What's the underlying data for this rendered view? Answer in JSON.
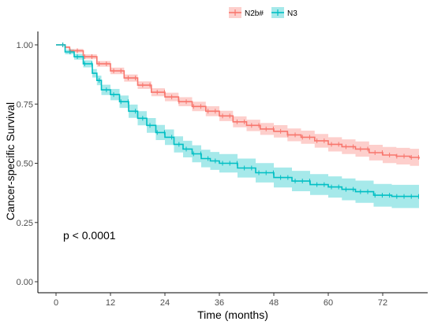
{
  "chart_data": {
    "type": "line",
    "xlabel": "Time (months)",
    "ylabel": "Cancer-specific Survival",
    "xlim": [
      0,
      80
    ],
    "ylim": [
      0,
      1
    ],
    "x_ticks": [
      0,
      12,
      24,
      36,
      48,
      60,
      72
    ],
    "y_ticks": [
      0.0,
      0.25,
      0.5,
      0.75,
      1.0
    ],
    "y_tick_labels": [
      "0.00",
      "0.25",
      "0.50",
      "0.75",
      "1.00"
    ],
    "grid": false,
    "legend_position": "top",
    "annotation": "p < 0.0001",
    "series": [
      {
        "name": "N2b#",
        "color": "#F8766D",
        "band_color": "#F8766D",
        "points": [
          [
            0,
            1.0
          ],
          [
            2,
            0.99
          ],
          [
            3,
            0.975
          ],
          [
            6,
            0.95
          ],
          [
            9,
            0.92
          ],
          [
            12,
            0.89
          ],
          [
            15,
            0.86
          ],
          [
            18,
            0.83
          ],
          [
            21,
            0.8
          ],
          [
            24,
            0.78
          ],
          [
            27,
            0.76
          ],
          [
            30,
            0.74
          ],
          [
            33,
            0.72
          ],
          [
            36,
            0.7
          ],
          [
            39,
            0.675
          ],
          [
            42,
            0.66
          ],
          [
            45,
            0.645
          ],
          [
            48,
            0.635
          ],
          [
            51,
            0.62
          ],
          [
            54,
            0.61
          ],
          [
            57,
            0.595
          ],
          [
            60,
            0.58
          ],
          [
            63,
            0.57
          ],
          [
            66,
            0.56
          ],
          [
            69,
            0.545
          ],
          [
            72,
            0.535
          ],
          [
            75,
            0.53
          ],
          [
            78,
            0.525
          ],
          [
            80,
            0.52
          ]
        ],
        "band_halfwidth": [
          0.0,
          0.005,
          0.008,
          0.01,
          0.012,
          0.014,
          0.015,
          0.016,
          0.017,
          0.018,
          0.019,
          0.02,
          0.021,
          0.022,
          0.023,
          0.024,
          0.025,
          0.026,
          0.027,
          0.028,
          0.029,
          0.03,
          0.031,
          0.032,
          0.033,
          0.034,
          0.035,
          0.036,
          0.037
        ]
      },
      {
        "name": "N3",
        "color": "#00BFC4",
        "band_color": "#00BFC4",
        "points": [
          [
            0,
            1.0
          ],
          [
            2,
            0.97
          ],
          [
            4,
            0.95
          ],
          [
            6,
            0.92
          ],
          [
            8,
            0.88
          ],
          [
            9,
            0.85
          ],
          [
            10,
            0.81
          ],
          [
            12,
            0.79
          ],
          [
            14,
            0.76
          ],
          [
            16,
            0.72
          ],
          [
            18,
            0.69
          ],
          [
            20,
            0.66
          ],
          [
            22,
            0.63
          ],
          [
            24,
            0.61
          ],
          [
            26,
            0.58
          ],
          [
            28,
            0.56
          ],
          [
            30,
            0.54
          ],
          [
            32,
            0.52
          ],
          [
            34,
            0.51
          ],
          [
            36,
            0.5
          ],
          [
            40,
            0.48
          ],
          [
            44,
            0.46
          ],
          [
            48,
            0.44
          ],
          [
            52,
            0.425
          ],
          [
            56,
            0.41
          ],
          [
            60,
            0.4
          ],
          [
            63,
            0.39
          ],
          [
            66,
            0.38
          ],
          [
            70,
            0.365
          ],
          [
            74,
            0.36
          ],
          [
            80,
            0.36
          ]
        ],
        "band_halfwidth": [
          0.0,
          0.01,
          0.012,
          0.015,
          0.018,
          0.02,
          0.022,
          0.024,
          0.026,
          0.028,
          0.03,
          0.031,
          0.032,
          0.033,
          0.034,
          0.035,
          0.036,
          0.037,
          0.038,
          0.039,
          0.04,
          0.041,
          0.042,
          0.043,
          0.044,
          0.045,
          0.046,
          0.047,
          0.048,
          0.049,
          0.05
        ]
      }
    ]
  }
}
